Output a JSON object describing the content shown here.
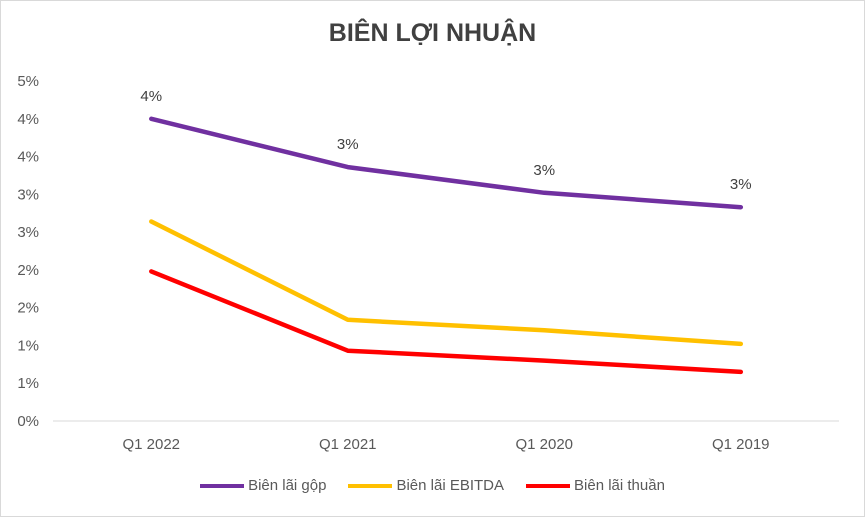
{
  "chart_data": {
    "type": "line",
    "title": "BIÊN LỢI NHUẬN",
    "categories": [
      "Q1 2022",
      "Q1 2021",
      "Q1 2020",
      "Q1 2019"
    ],
    "yticks": [
      "0%",
      "1%",
      "1%",
      "2%",
      "2%",
      "3%",
      "3%",
      "4%",
      "4%",
      "5%"
    ],
    "ylim": [
      0,
      4.5
    ],
    "grid": false,
    "legend_position": "bottom",
    "series": [
      {
        "name": "Biên lãi gộp",
        "color": "#7030A0",
        "values": [
          4.0,
          3.36,
          3.02,
          2.83
        ],
        "labels": [
          "4%",
          "3%",
          "3%",
          "3%"
        ]
      },
      {
        "name": "Biên lãi EBITDA",
        "color": "#FFC000",
        "values": [
          2.64,
          1.34,
          1.2,
          1.02
        ],
        "labels": []
      },
      {
        "name": "Biên lãi thuần",
        "color": "#FF0000",
        "values": [
          1.98,
          0.93,
          0.8,
          0.65
        ],
        "labels": []
      }
    ]
  }
}
